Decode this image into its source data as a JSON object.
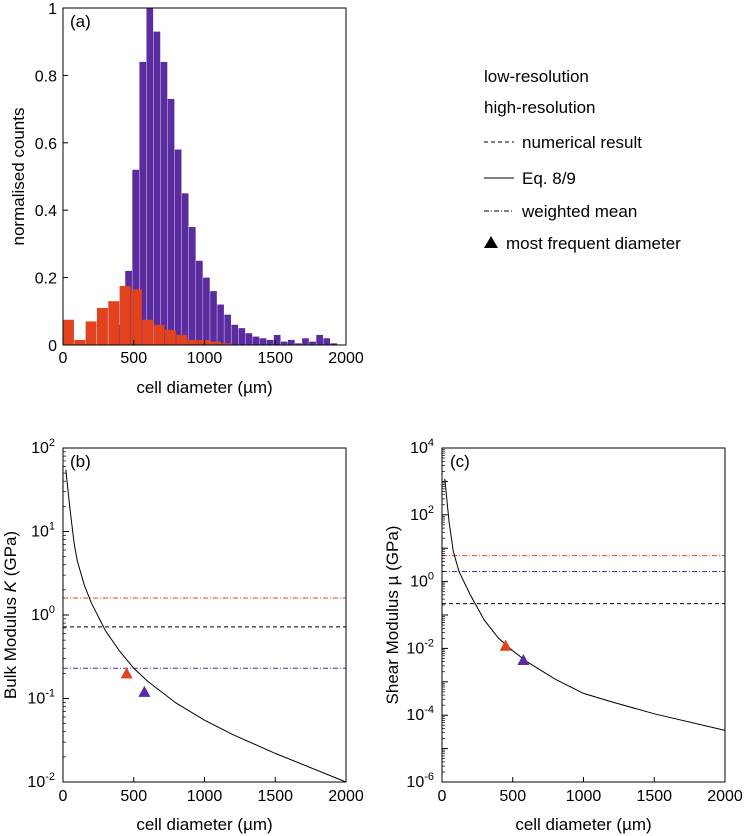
{
  "colors": {
    "low": "#5a2ca0",
    "high": "#e2431e",
    "ink": "#000000"
  },
  "legend": {
    "low_label": "low-resolution",
    "high_label": "high-resolution",
    "numerical_label": "numerical result",
    "eq_label": "Eq. 8/9",
    "weighted_label": "weighted mean",
    "most_frequent_label": "most frequent diameter"
  },
  "chart_data": [
    {
      "id": "a",
      "type": "bar",
      "panel_label": "(a)",
      "xlabel": "cell diameter (µm)",
      "ylabel": "normalised counts",
      "xlim": [
        0,
        2000
      ],
      "ylim": [
        0,
        1
      ],
      "xticks": [
        0,
        500,
        1000,
        1500,
        2000
      ],
      "yticks": [
        0,
        0.2,
        0.4,
        0.6,
        0.8,
        1
      ],
      "ytick_labels": [
        "0",
        "0.2",
        "0.4",
        "0.6",
        "0.8",
        "1"
      ],
      "series": [
        {
          "name": "low-resolution",
          "color": "#5a2ca0",
          "bin_edges": [
            340,
            390,
            440,
            490,
            540,
            590,
            640,
            690,
            740,
            790,
            840,
            890,
            940,
            990,
            1040,
            1090,
            1140,
            1190,
            1240,
            1290,
            1340,
            1390,
            1440,
            1490,
            1540,
            1590,
            1640,
            1690,
            1740,
            1790,
            1840,
            1890,
            1940
          ],
          "values": [
            0.015,
            0.06,
            0.22,
            0.52,
            0.84,
            1.0,
            0.93,
            0.84,
            0.73,
            0.58,
            0.45,
            0.35,
            0.25,
            0.2,
            0.16,
            0.12,
            0.09,
            0.06,
            0.05,
            0.035,
            0.025,
            0.02,
            0.015,
            0.03,
            0.01,
            0.015,
            0.005,
            0.02,
            0.01,
            0.03,
            0.02,
            0.005
          ]
        },
        {
          "name": "high-resolution",
          "color": "#e2431e",
          "bin_edges": [
            0,
            80,
            160,
            240,
            320,
            400,
            480,
            560,
            640,
            720,
            800,
            880,
            960,
            1040,
            1120,
            1200
          ],
          "values": [
            0.075,
            0.015,
            0.07,
            0.11,
            0.13,
            0.175,
            0.165,
            0.075,
            0.06,
            0.045,
            0.03,
            0.015,
            0.015,
            0.01,
            0.005
          ]
        }
      ]
    },
    {
      "id": "b",
      "type": "line",
      "panel_label": "(b)",
      "xlabel": "cell diameter (µm)",
      "ylabel_prefix": "Bulk Modulus ",
      "ylabel_symbol": "K",
      "ylabel_suffix": " (GPa)",
      "yscale": "log",
      "xlim": [
        0,
        2000
      ],
      "ylim_exp": [
        -2,
        2
      ],
      "xticks": [
        0,
        500,
        1000,
        1500,
        2000
      ],
      "yticks_exp": [
        -2,
        -1,
        0,
        1,
        2
      ],
      "tick_base": "10",
      "curve_x": [
        20,
        50,
        80,
        100,
        150,
        200,
        300,
        400,
        500,
        600,
        800,
        1000,
        1200,
        1500,
        2000
      ],
      "curve_y": [
        55,
        18,
        7,
        4.5,
        2.3,
        1.4,
        0.65,
        0.37,
        0.23,
        0.16,
        0.088,
        0.055,
        0.037,
        0.022,
        0.01
      ],
      "hlines": [
        {
          "name": "high-resolution weighted mean",
          "y": 1.6,
          "style": "dashdot",
          "color": "#e2431e"
        },
        {
          "name": "numerical result",
          "y": 0.72,
          "style": "dashed",
          "color": "#000000"
        },
        {
          "name": "low-resolution weighted mean",
          "y": 0.23,
          "style": "dashdot",
          "color": "#5a2ca0"
        }
      ],
      "markers": [
        {
          "name": "high-resolution most frequent diameter",
          "x": 450,
          "y": 0.2,
          "color": "#e2431e"
        },
        {
          "name": "low-resolution most frequent diameter",
          "x": 575,
          "y": 0.12,
          "color": "#5a2ca0"
        }
      ]
    },
    {
      "id": "c",
      "type": "line",
      "panel_label": "(c)",
      "xlabel": "cell diameter (µm)",
      "ylabel_prefix": "Shear Modulus ",
      "ylabel_symbol": "µ",
      "ylabel_suffix": " (GPa)",
      "yscale": "log",
      "xlim": [
        0,
        2000
      ],
      "ylim_exp": [
        -6,
        4
      ],
      "xticks": [
        0,
        500,
        1000,
        1500,
        2000
      ],
      "yticks_exp": [
        -6,
        -4,
        -2,
        0,
        2,
        4
      ],
      "tick_base": "10",
      "curve_x": [
        20,
        50,
        80,
        120,
        200,
        300,
        400,
        500,
        600,
        800,
        1000,
        1200,
        1500,
        2000
      ],
      "curve_y": [
        1200,
        60,
        8,
        2,
        0.4,
        0.07,
        0.02,
        0.0085,
        0.004,
        0.0012,
        0.00045,
        0.00025,
        0.00011,
        3.5e-05
      ],
      "hlines": [
        {
          "name": "high-resolution weighted mean",
          "y": 6,
          "style": "dashdot",
          "color": "#e2431e"
        },
        {
          "name": "low-resolution weighted mean",
          "y": 2,
          "style": "dashdot",
          "color": "#5a2ca0"
        },
        {
          "name": "numerical result",
          "y": 0.22,
          "style": "dashed",
          "color": "#000000"
        }
      ],
      "markers": [
        {
          "name": "high-resolution most frequent diameter",
          "x": 450,
          "y": 0.012,
          "color": "#e2431e"
        },
        {
          "name": "low-resolution most frequent diameter",
          "x": 575,
          "y": 0.0045,
          "color": "#5a2ca0"
        }
      ]
    }
  ]
}
